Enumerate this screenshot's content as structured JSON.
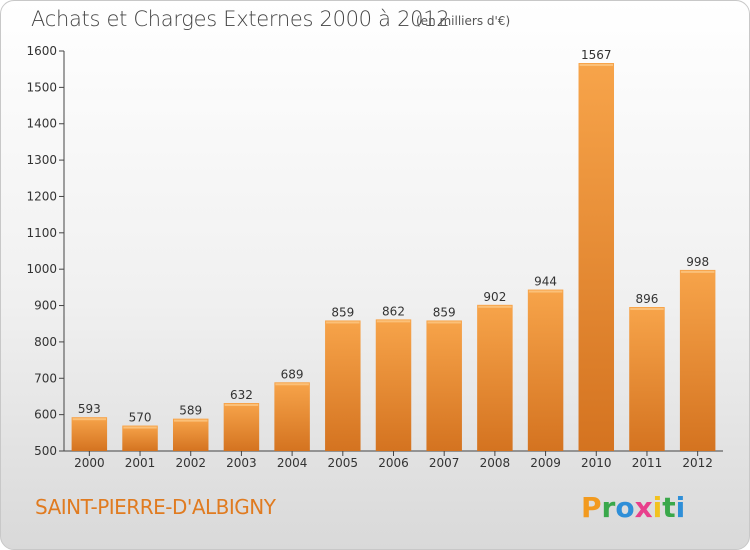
{
  "title": "Achats et Charges Externes 2000 à 2012",
  "subtitle": "(en milliers d'€)",
  "location": "SAINT-PIERRE-D'ALBIGNY",
  "logo": "Proxiti",
  "colors": {
    "bar_light": "#f7a44a",
    "bar_dark": "#d8761e",
    "location_text": "#e07b20"
  },
  "chart_data": {
    "type": "bar",
    "categories": [
      "2000",
      "2001",
      "2002",
      "2003",
      "2004",
      "2005",
      "2006",
      "2007",
      "2008",
      "2009",
      "2010",
      "2011",
      "2012"
    ],
    "values": [
      593,
      570,
      589,
      632,
      689,
      859,
      862,
      859,
      902,
      944,
      1567,
      896,
      998
    ],
    "value_labels": [
      "593",
      "570",
      "589",
      "632",
      "689",
      "859",
      "862",
      "859",
      "902",
      "944",
      "1567",
      "896",
      "998"
    ],
    "yticks": [
      500,
      600,
      700,
      800,
      900,
      1000,
      1100,
      1200,
      1300,
      1400,
      1500,
      1600
    ],
    "ylim": [
      500,
      1600
    ],
    "grid": false,
    "title": "Achats et Charges Externes 2000 à 2012",
    "xlabel": "",
    "ylabel": ""
  }
}
